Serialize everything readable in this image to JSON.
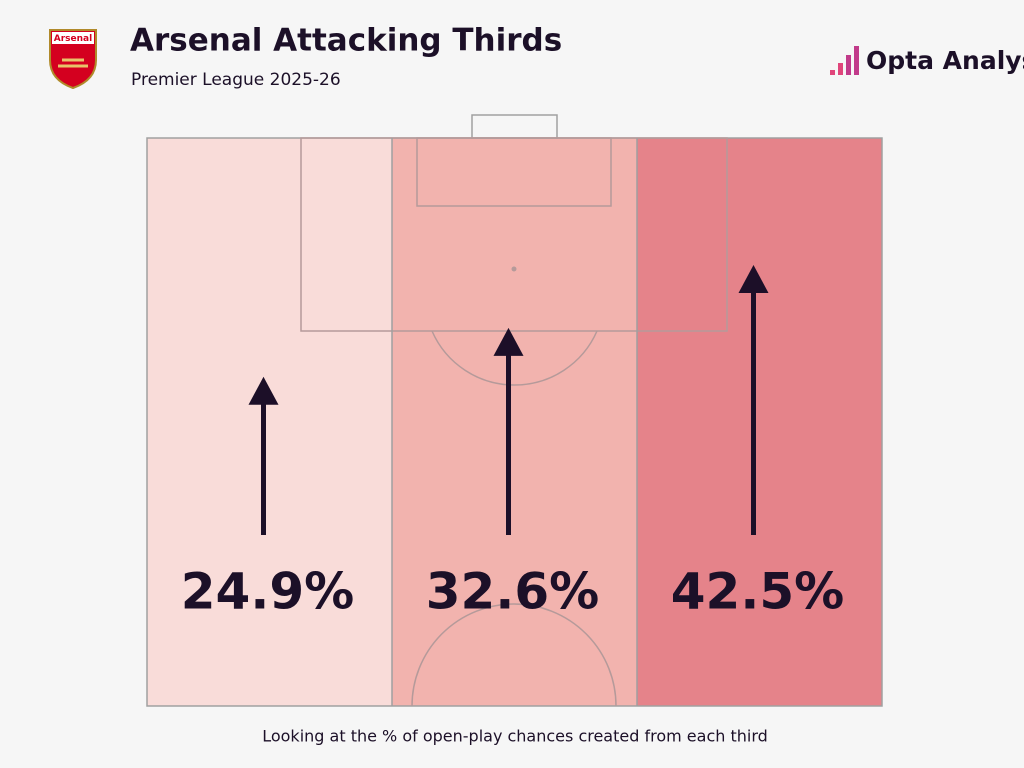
{
  "chart_data": {
    "type": "thirds",
    "title": "Arsenal Attacking Thirds",
    "subtitle": "Premier League 2025-26",
    "note": "Looking at the % of open-play chances created from each third",
    "badge": "Arsenal",
    "brand": "Opta Analyst",
    "values": [
      24.9,
      32.6,
      42.5
    ],
    "value_labels": [
      "24.9%",
      "32.6%",
      "42.5%"
    ],
    "colors": [
      "#f9dcd9",
      "#f2b3ae",
      "#e5838a"
    ]
  }
}
